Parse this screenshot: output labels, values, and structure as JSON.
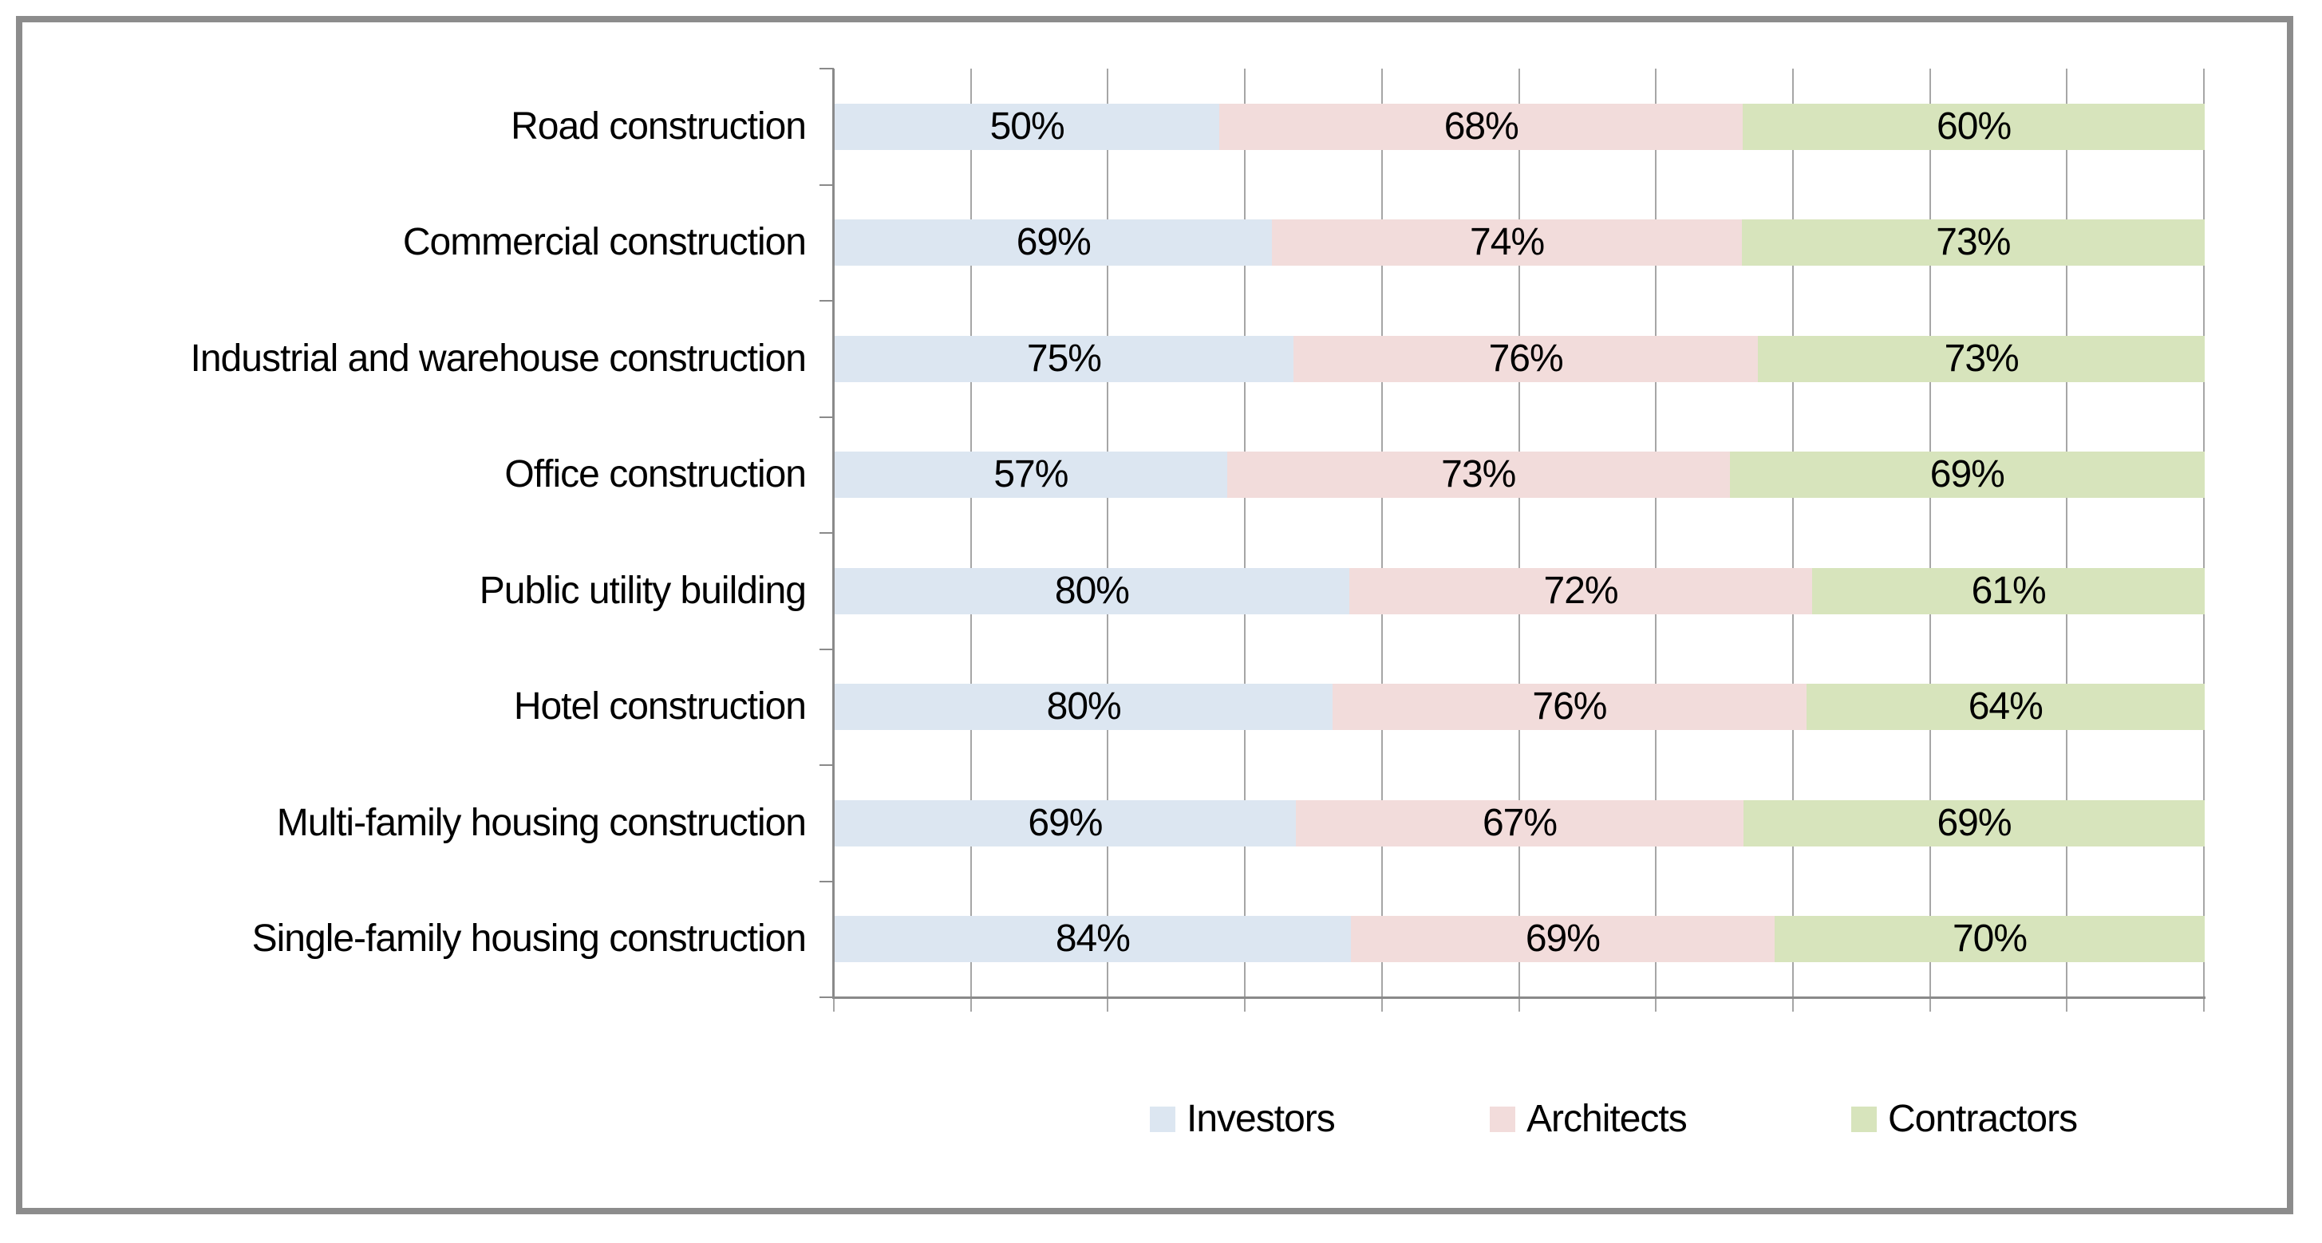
{
  "chart_data": {
    "type": "bar",
    "subtype": "percent-stacked",
    "orientation": "horizontal",
    "title": "",
    "categories": [
      "Road construction",
      "Commercial construction",
      "Industrial and warehouse construction",
      "Office construction",
      "Public utility building",
      "Hotel construction",
      "Multi-family housing construction",
      "Single-family housing construction"
    ],
    "series": [
      {
        "name": "Investors",
        "color": "#dce6f1",
        "values": [
          50,
          69,
          75,
          57,
          80,
          80,
          69,
          84
        ],
        "labels": [
          "50%",
          "69%",
          "75%",
          "57%",
          "80%",
          "80%",
          "69%",
          "84%"
        ]
      },
      {
        "name": "Architects",
        "color": "#f2dcdb",
        "values": [
          68,
          74,
          76,
          73,
          72,
          76,
          67,
          69
        ],
        "labels": [
          "68%",
          "74%",
          "76%",
          "73%",
          "72%",
          "76%",
          "67%",
          "69%"
        ]
      },
      {
        "name": "Contractors",
        "color": "#d7e4bc",
        "values": [
          60,
          73,
          73,
          69,
          61,
          64,
          69,
          70
        ],
        "labels": [
          "60%",
          "73%",
          "73%",
          "69%",
          "61%",
          "64%",
          "69%",
          "70%"
        ]
      }
    ],
    "data_labels_position": "inside-center",
    "value_axis": {
      "min": 0,
      "max": 100,
      "major_gridline_count": 11,
      "tick_labels_visible": false
    },
    "grid_on": true,
    "legend_position": "bottom",
    "colors": {
      "gridline": "#a6a6a6",
      "axis": "#8a8a8a",
      "outer_border": "#8c8c8c",
      "background": "#ffffff",
      "text": "#000000"
    }
  },
  "legend": {
    "items": [
      {
        "label": "Investors",
        "color": "#dce6f1"
      },
      {
        "label": "Architects",
        "color": "#f2dcdb"
      },
      {
        "label": "Contractors",
        "color": "#d7e4bc"
      }
    ]
  }
}
